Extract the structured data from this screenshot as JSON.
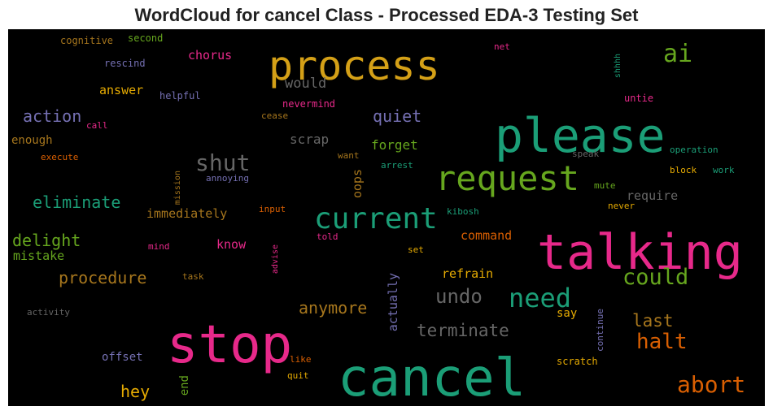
{
  "title": "WordCloud for cancel Class - Processed EDA-3 Testing Set",
  "chart_data": {
    "type": "wordcloud",
    "title": "WordCloud for cancel Class - Processed EDA-3 Testing Set",
    "background": "#000000",
    "words": [
      {
        "text": "process",
        "weight": 0.62,
        "color": "#d4a017"
      },
      {
        "text": "please",
        "weight": 0.72,
        "color": "#1b9e77"
      },
      {
        "text": "request",
        "weight": 0.52,
        "color": "#66a61e"
      },
      {
        "text": "ai",
        "weight": 0.36,
        "color": "#66a61e"
      },
      {
        "text": "talking",
        "weight": 0.78,
        "color": "#e7298a"
      },
      {
        "text": "stop",
        "weight": 0.85,
        "color": "#e7298a"
      },
      {
        "text": "cancel",
        "weight": 1.0,
        "color": "#1b9e77"
      },
      {
        "text": "current",
        "weight": 0.48,
        "color": "#1b9e77"
      },
      {
        "text": "shut",
        "weight": 0.37,
        "color": "#666666"
      },
      {
        "text": "need",
        "weight": 0.4,
        "color": "#1b9e77"
      },
      {
        "text": "could",
        "weight": 0.32,
        "color": "#66a61e"
      },
      {
        "text": "abort",
        "weight": 0.34,
        "color": "#d95f02"
      },
      {
        "text": "halt",
        "weight": 0.3,
        "color": "#d95f02"
      },
      {
        "text": "last",
        "weight": 0.26,
        "color": "#a6761d"
      },
      {
        "text": "undo",
        "weight": 0.3,
        "color": "#666666"
      },
      {
        "text": "terminate",
        "weight": 0.26,
        "color": "#666666"
      },
      {
        "text": "anymore",
        "weight": 0.24,
        "color": "#a6761d"
      },
      {
        "text": "procedure",
        "weight": 0.24,
        "color": "#a6761d"
      },
      {
        "text": "eliminate",
        "weight": 0.24,
        "color": "#1b9e77"
      },
      {
        "text": "action",
        "weight": 0.24,
        "color": "#7570b3"
      },
      {
        "text": "delight",
        "weight": 0.24,
        "color": "#66a61e"
      },
      {
        "text": "quiet",
        "weight": 0.24,
        "color": "#7570b3"
      },
      {
        "text": "hey",
        "weight": 0.24,
        "color": "#e6ab02"
      },
      {
        "text": "would",
        "weight": 0.2,
        "color": "#666666"
      },
      {
        "text": "scrap",
        "weight": 0.19,
        "color": "#666666"
      },
      {
        "text": "forget",
        "weight": 0.19,
        "color": "#66a61e"
      },
      {
        "text": "oops",
        "weight": 0.17,
        "color": "#a6761d"
      },
      {
        "text": "require",
        "weight": 0.18,
        "color": "#666666"
      },
      {
        "text": "immediately",
        "weight": 0.18,
        "color": "#a6761d"
      },
      {
        "text": "answer",
        "weight": 0.17,
        "color": "#e6ab02"
      },
      {
        "text": "chorus",
        "weight": 0.17,
        "color": "#e7298a"
      },
      {
        "text": "enough",
        "weight": 0.16,
        "color": "#a6761d"
      },
      {
        "text": "know",
        "weight": 0.17,
        "color": "#e7298a"
      },
      {
        "text": "mistake",
        "weight": 0.17,
        "color": "#66a61e"
      },
      {
        "text": "command",
        "weight": 0.17,
        "color": "#d95f02"
      },
      {
        "text": "refrain",
        "weight": 0.17,
        "color": "#e6ab02"
      },
      {
        "text": "actually",
        "weight": 0.17,
        "color": "#7570b3"
      },
      {
        "text": "offset",
        "weight": 0.16,
        "color": "#7570b3"
      },
      {
        "text": "end",
        "weight": 0.16,
        "color": "#66a61e"
      },
      {
        "text": "say",
        "weight": 0.16,
        "color": "#e6ab02"
      },
      {
        "text": "continue",
        "weight": 0.12,
        "color": "#7570b3"
      },
      {
        "text": "cognitive",
        "weight": 0.12,
        "color": "#a6761d"
      },
      {
        "text": "second",
        "weight": 0.12,
        "color": "#66a61e"
      },
      {
        "text": "rescind",
        "weight": 0.12,
        "color": "#7570b3"
      },
      {
        "text": "net",
        "weight": 0.11,
        "color": "#e7298a"
      },
      {
        "text": "shhhh",
        "weight": 0.1,
        "color": "#1b9e77"
      },
      {
        "text": "helpful",
        "weight": 0.12,
        "color": "#7570b3"
      },
      {
        "text": "nevermind",
        "weight": 0.12,
        "color": "#e7298a"
      },
      {
        "text": "untie",
        "weight": 0.12,
        "color": "#e7298a"
      },
      {
        "text": "call",
        "weight": 0.11,
        "color": "#e7298a"
      },
      {
        "text": "cease",
        "weight": 0.11,
        "color": "#a6761d"
      },
      {
        "text": "execute",
        "weight": 0.11,
        "color": "#d95f02"
      },
      {
        "text": "mission",
        "weight": 0.1,
        "color": "#a6761d"
      },
      {
        "text": "annoying",
        "weight": 0.11,
        "color": "#7570b3"
      },
      {
        "text": "want",
        "weight": 0.11,
        "color": "#a6761d"
      },
      {
        "text": "arrest",
        "weight": 0.11,
        "color": "#1b9e77"
      },
      {
        "text": "speak",
        "weight": 0.11,
        "color": "#666666"
      },
      {
        "text": "operation",
        "weight": 0.11,
        "color": "#1b9e77"
      },
      {
        "text": "block",
        "weight": 0.11,
        "color": "#e6ab02"
      },
      {
        "text": "work",
        "weight": 0.11,
        "color": "#1b9e77"
      },
      {
        "text": "mute",
        "weight": 0.11,
        "color": "#66a61e"
      },
      {
        "text": "never",
        "weight": 0.11,
        "color": "#e6ab02"
      },
      {
        "text": "input",
        "weight": 0.11,
        "color": "#d95f02"
      },
      {
        "text": "kibosh",
        "weight": 0.11,
        "color": "#1b9e77"
      },
      {
        "text": "told",
        "weight": 0.11,
        "color": "#e7298a"
      },
      {
        "text": "advise",
        "weight": 0.1,
        "color": "#e7298a"
      },
      {
        "text": "mind",
        "weight": 0.11,
        "color": "#e7298a"
      },
      {
        "text": "task",
        "weight": 0.11,
        "color": "#a6761d"
      },
      {
        "text": "set",
        "weight": 0.11,
        "color": "#e6ab02"
      },
      {
        "text": "activity",
        "weight": 0.11,
        "color": "#666666"
      },
      {
        "text": "like",
        "weight": 0.11,
        "color": "#d95f02"
      },
      {
        "text": "quit",
        "weight": 0.11,
        "color": "#e6ab02"
      },
      {
        "text": "scratch",
        "weight": 0.11,
        "color": "#e6ab02"
      }
    ]
  }
}
